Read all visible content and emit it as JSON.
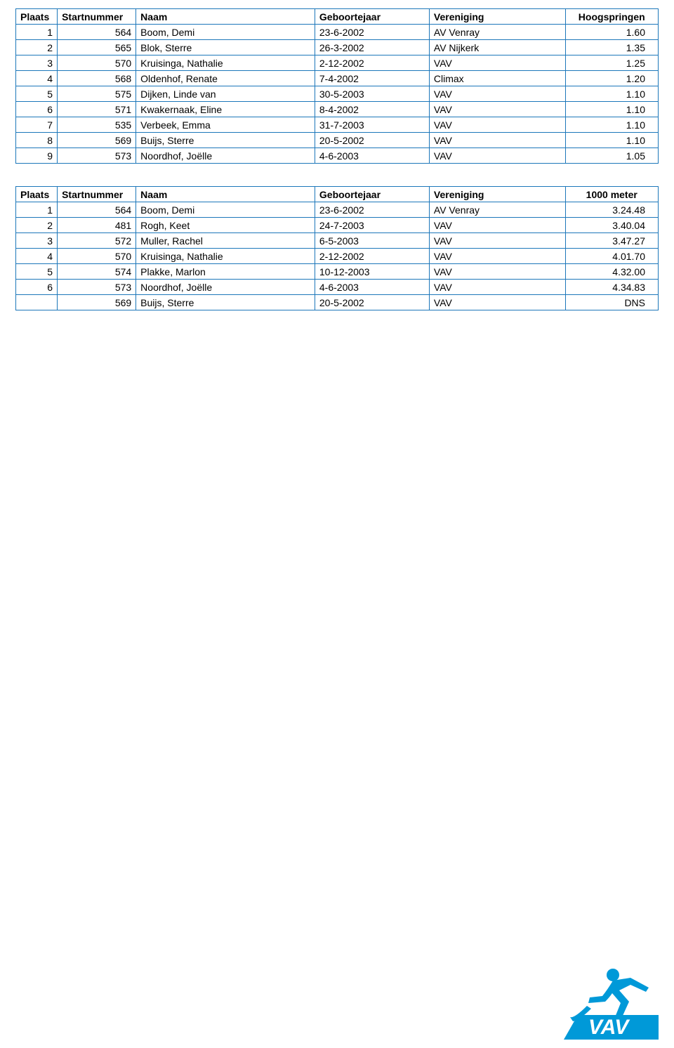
{
  "tables": [
    {
      "headers": {
        "plaats": "Plaats",
        "startnr": "Startnummer",
        "naam": "Naam",
        "jaar": "Geboortejaar",
        "ver": "Vereniging",
        "metric": "Hoogspringen"
      },
      "rows": [
        {
          "plaats": "1",
          "startnr": "564",
          "naam": "Boom, Demi",
          "jaar": "23-6-2002",
          "ver": "AV Venray",
          "metric": "1.60"
        },
        {
          "plaats": "2",
          "startnr": "565",
          "naam": "Blok, Sterre",
          "jaar": "26-3-2002",
          "ver": "AV Nijkerk",
          "metric": "1.35"
        },
        {
          "plaats": "3",
          "startnr": "570",
          "naam": "Kruisinga, Nathalie",
          "jaar": "2-12-2002",
          "ver": "VAV",
          "metric": "1.25"
        },
        {
          "plaats": "4",
          "startnr": "568",
          "naam": "Oldenhof, Renate",
          "jaar": "7-4-2002",
          "ver": "Climax",
          "metric": "1.20"
        },
        {
          "plaats": "5",
          "startnr": "575",
          "naam": "Dijken, Linde van",
          "jaar": "30-5-2003",
          "ver": "VAV",
          "metric": "1.10"
        },
        {
          "plaats": "6",
          "startnr": "571",
          "naam": "Kwakernaak, Eline",
          "jaar": "8-4-2002",
          "ver": "VAV",
          "metric": "1.10"
        },
        {
          "plaats": "7",
          "startnr": "535",
          "naam": "Verbeek, Emma",
          "jaar": "31-7-2003",
          "ver": "VAV",
          "metric": "1.10"
        },
        {
          "plaats": "8",
          "startnr": "569",
          "naam": "Buijs, Sterre",
          "jaar": "20-5-2002",
          "ver": "VAV",
          "metric": "1.10"
        },
        {
          "plaats": "9",
          "startnr": "573",
          "naam": "Noordhof, Joëlle",
          "jaar": "4-6-2003",
          "ver": "VAV",
          "metric": "1.05"
        }
      ]
    },
    {
      "headers": {
        "plaats": "Plaats",
        "startnr": "Startnummer",
        "naam": "Naam",
        "jaar": "Geboortejaar",
        "ver": "Vereniging",
        "metric": "1000 meter"
      },
      "rows": [
        {
          "plaats": "1",
          "startnr": "564",
          "naam": "Boom, Demi",
          "jaar": "23-6-2002",
          "ver": "AV Venray",
          "metric": "3.24.48"
        },
        {
          "plaats": "2",
          "startnr": "481",
          "naam": "Rogh, Keet",
          "jaar": "24-7-2003",
          "ver": "VAV",
          "metric": "3.40.04"
        },
        {
          "plaats": "3",
          "startnr": "572",
          "naam": "Muller, Rachel",
          "jaar": "6-5-2003",
          "ver": "VAV",
          "metric": "3.47.27"
        },
        {
          "plaats": "4",
          "startnr": "570",
          "naam": "Kruisinga, Nathalie",
          "jaar": "2-12-2002",
          "ver": "VAV",
          "metric": "4.01.70"
        },
        {
          "plaats": "5",
          "startnr": "574",
          "naam": "Plakke, Marlon",
          "jaar": "10-12-2003",
          "ver": "VAV",
          "metric": "4.32.00"
        },
        {
          "plaats": "6",
          "startnr": "573",
          "naam": "Noordhof, Joëlle",
          "jaar": "4-6-2003",
          "ver": "VAV",
          "metric": "4.34.83"
        },
        {
          "plaats": "",
          "startnr": "569",
          "naam": "Buijs, Sterre",
          "jaar": "20-5-2002",
          "ver": "VAV",
          "metric": "DNS"
        }
      ]
    }
  ],
  "style": {
    "border_color": "#1c77ba",
    "text_color": "#000000",
    "bg_color": "#ffffff",
    "logo_blue": "#0099d8",
    "logo_text": "VAV"
  }
}
